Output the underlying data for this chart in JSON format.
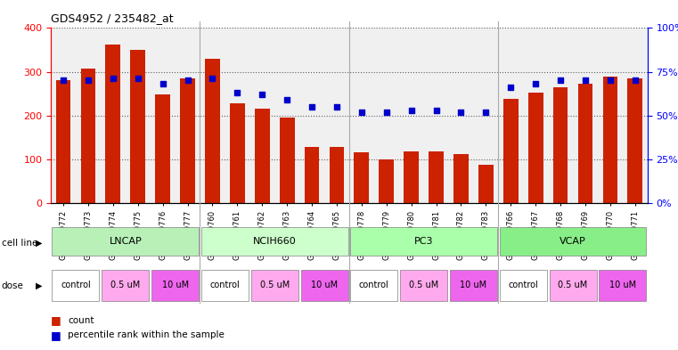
{
  "title": "GDS4952 / 235482_at",
  "samples": [
    "GSM1359772",
    "GSM1359773",
    "GSM1359774",
    "GSM1359775",
    "GSM1359776",
    "GSM1359777",
    "GSM1359760",
    "GSM1359761",
    "GSM1359762",
    "GSM1359763",
    "GSM1359764",
    "GSM1359765",
    "GSM1359778",
    "GSM1359779",
    "GSM1359780",
    "GSM1359781",
    "GSM1359782",
    "GSM1359783",
    "GSM1359766",
    "GSM1359767",
    "GSM1359768",
    "GSM1359769",
    "GSM1359770",
    "GSM1359771"
  ],
  "counts": [
    280,
    307,
    362,
    350,
    248,
    285,
    330,
    228,
    215,
    195,
    128,
    128,
    115,
    100,
    117,
    117,
    112,
    88,
    238,
    252,
    265,
    272,
    288,
    285
  ],
  "percentile": [
    70,
    70,
    71,
    71,
    68,
    70,
    71,
    63,
    62,
    59,
    55,
    55,
    52,
    52,
    53,
    53,
    52,
    52,
    66,
    68,
    70,
    70,
    70,
    70
  ],
  "cell_lines": [
    "LNCAP",
    "NCIH660",
    "PC3",
    "VCAP"
  ],
  "cell_line_spans": [
    [
      0,
      6
    ],
    [
      6,
      12
    ],
    [
      12,
      18
    ],
    [
      18,
      24
    ]
  ],
  "cl_colors": [
    "#b8f0b8",
    "#ccffcc",
    "#aaffaa",
    "#88ee88"
  ],
  "bar_color": "#cc2200",
  "dot_color": "#0000cc",
  "ylim_left": [
    0,
    400
  ],
  "ylim_right": [
    0,
    100
  ],
  "yticks_left": [
    0,
    100,
    200,
    300,
    400
  ],
  "ytick_labels_right": [
    "0%",
    "25%",
    "50%",
    "75%",
    "100%"
  ],
  "background_color": "#ffffff",
  "plot_bg": "#f0f0f0",
  "dose_spans_detail": [
    [
      0,
      2,
      "control",
      "#ffffff"
    ],
    [
      2,
      4,
      "0.5 uM",
      "#ffaaee"
    ],
    [
      4,
      6,
      "10 uM",
      "#ee66ee"
    ],
    [
      6,
      8,
      "control",
      "#ffffff"
    ],
    [
      8,
      10,
      "0.5 uM",
      "#ffaaee"
    ],
    [
      10,
      12,
      "10 uM",
      "#ee66ee"
    ],
    [
      12,
      14,
      "control",
      "#ffffff"
    ],
    [
      14,
      16,
      "0.5 uM",
      "#ffaaee"
    ],
    [
      16,
      18,
      "10 uM",
      "#ee66ee"
    ],
    [
      18,
      20,
      "control",
      "#ffffff"
    ],
    [
      20,
      22,
      "0.5 uM",
      "#ffaaee"
    ],
    [
      22,
      24,
      "10 uM",
      "#ee66ee"
    ]
  ]
}
